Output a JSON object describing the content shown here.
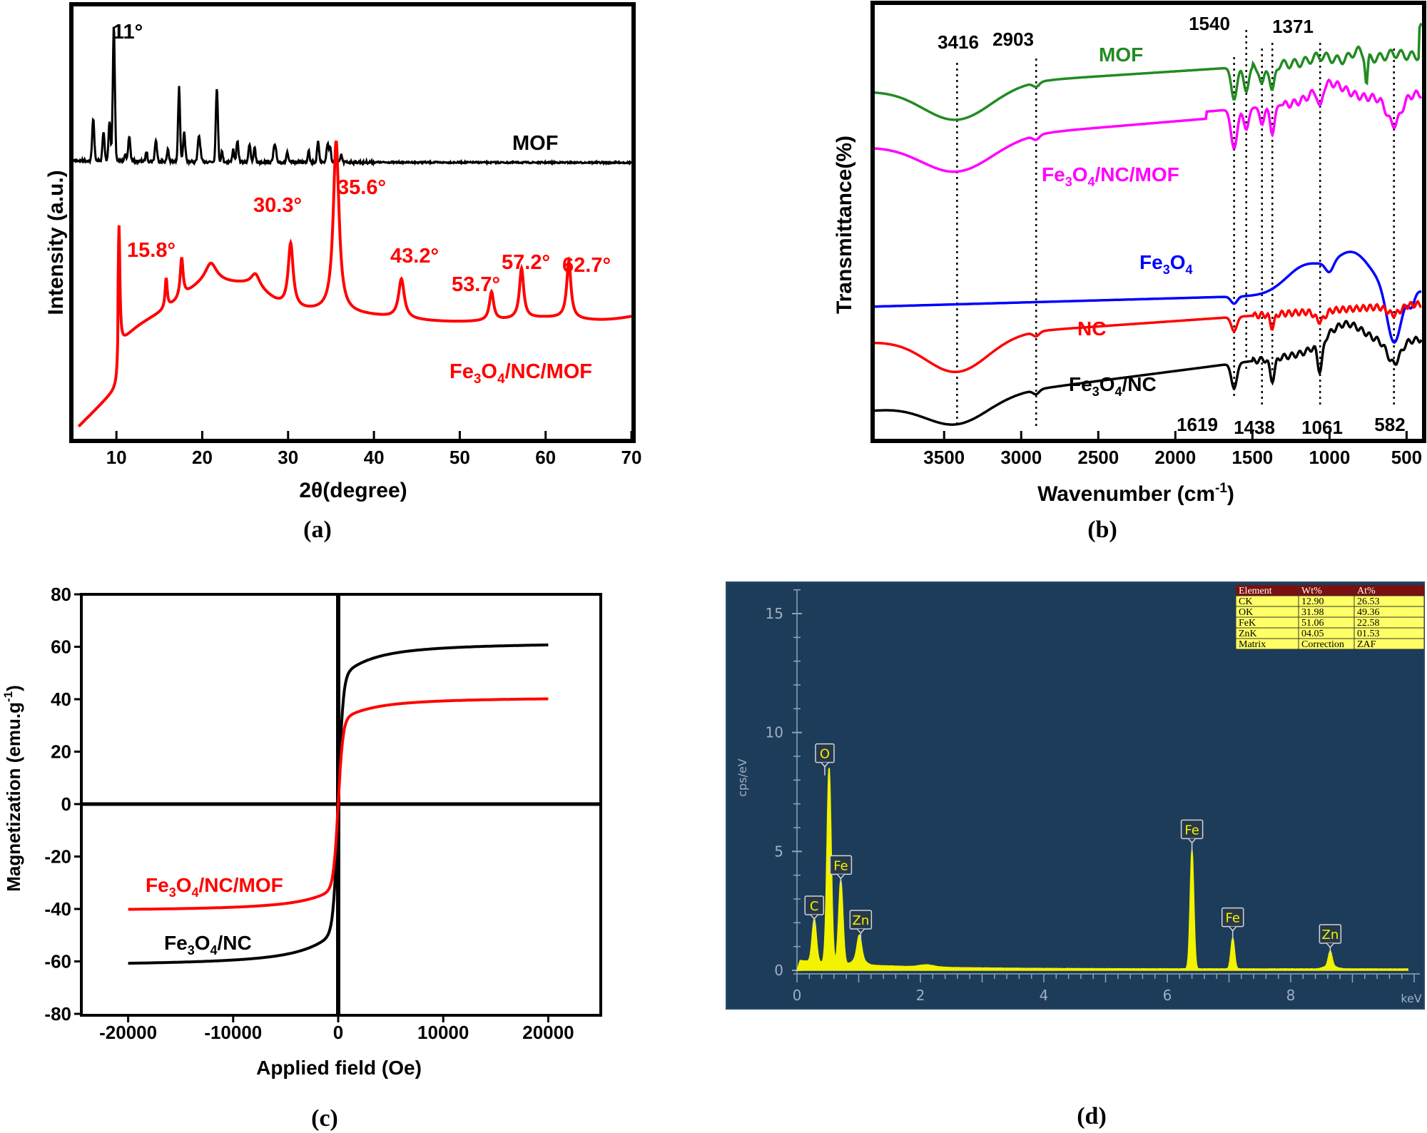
{
  "captions": {
    "a": "(a)",
    "b": "(b)",
    "c": "(c)",
    "d": "(d)"
  },
  "chart_data": [
    {
      "panel": "a",
      "type": "line",
      "title": "",
      "xlabel": "2θ(degree)",
      "ylabel": "Intensity (a.u.)",
      "xlim": [
        5,
        70
      ],
      "xticks": [
        "10",
        "20",
        "30",
        "40",
        "50",
        "60",
        "70"
      ],
      "series": [
        {
          "name": "MOF",
          "color": "#000000",
          "peaks_deg": [
            7.3,
            8.5,
            9.2,
            9.7,
            11.5,
            14.6,
            17.3,
            17.9,
            19.6,
            21.7,
            24.1,
            25.5,
            28.4,
            33.5,
            34.6
          ],
          "annotations": [
            {
              "x": 9.7,
              "text": "11°"
            }
          ]
        },
        {
          "name": "Fe3O4/NC/MOF",
          "color": "#ff0000",
          "peaks_deg": [
            10.3,
            15.8,
            17.6,
            30.3,
            35.6,
            43.2,
            53.7,
            57.2,
            62.7
          ],
          "annotations": [
            {
              "x": 15.8,
              "text": "15.8°"
            },
            {
              "x": 30.3,
              "text": "30.3°"
            },
            {
              "x": 35.6,
              "text": "35.6°"
            },
            {
              "x": 43.2,
              "text": "43.2°"
            },
            {
              "x": 53.7,
              "text": "53.7°"
            },
            {
              "x": 57.2,
              "text": "57.2°"
            },
            {
              "x": 62.7,
              "text": "62.7°"
            }
          ]
        }
      ]
    },
    {
      "panel": "b",
      "type": "line",
      "title": "",
      "xlabel": "Wavenumber (cm-1)",
      "ylabel": "Transmittance(%)",
      "xlim": [
        3950,
        400
      ],
      "xticks": [
        "3500",
        "3000",
        "2500",
        "2000",
        "1500",
        "1000",
        "500"
      ],
      "reference_lines": [
        "3416",
        "2903",
        "1619",
        "1540",
        "1438",
        "1371",
        "1061",
        "582"
      ],
      "series": [
        {
          "name": "MOF",
          "color": "#228b22"
        },
        {
          "name": "Fe3O4/NC/MOF",
          "color": "#ff00ff"
        },
        {
          "name": "Fe3O4",
          "color": "#0000ff"
        },
        {
          "name": "NC",
          "color": "#ff0000"
        },
        {
          "name": "Fe3O4/NC",
          "color": "#000000"
        }
      ]
    },
    {
      "panel": "c",
      "type": "line",
      "title": "",
      "xlabel": "Applied field (Oe)",
      "ylabel": "Magnetization (emu.g-1)",
      "xlim": [
        -25000,
        25000
      ],
      "ylim": [
        -80,
        80
      ],
      "xticks": [
        "-20000",
        "-10000",
        "0",
        "10000",
        "20000"
      ],
      "yticks": [
        "80",
        "60",
        "40",
        "20",
        "0",
        "-20",
        "-40",
        "-60",
        "-80"
      ],
      "series": [
        {
          "name": "Fe3O4/NC",
          "color": "#000000",
          "saturation": 62,
          "x": [
            -20000,
            -10000,
            -5000,
            -2000,
            -1000,
            0,
            1000,
            2000,
            5000,
            10000,
            20000
          ],
          "y": [
            -62,
            -59.5,
            -56,
            -48,
            -41,
            0,
            41,
            48,
            56,
            59.5,
            62
          ]
        },
        {
          "name": "Fe3O4/NC/MOF",
          "color": "#ff0000",
          "saturation": 41,
          "x": [
            -20000,
            -10000,
            -5000,
            -2000,
            -1000,
            0,
            1000,
            2000,
            5000,
            10000,
            20000
          ],
          "y": [
            -41,
            -39.5,
            -37,
            -33,
            -28,
            0,
            28,
            33,
            37,
            39.5,
            41
          ]
        }
      ]
    },
    {
      "panel": "d",
      "type": "line",
      "title": "",
      "xlabel": "keV",
      "ylabel": "cps/eV",
      "xlim": [
        0,
        10
      ],
      "ylim": [
        0,
        17
      ],
      "xticks": [
        "0",
        "2",
        "4",
        "6",
        "8"
      ],
      "yticks": [
        "0",
        "5",
        "10",
        "15"
      ],
      "peaks": [
        {
          "label": "C",
          "x": 0.28,
          "y": 1.8
        },
        {
          "label": "O",
          "x": 0.52,
          "y": 8.2
        },
        {
          "label": "Fe",
          "x": 0.71,
          "y": 3.5
        },
        {
          "label": "Zn",
          "x": 1.01,
          "y": 0.9
        },
        {
          "label": "Fe",
          "x": 6.4,
          "y": 5.0
        },
        {
          "label": "Fe",
          "x": 7.06,
          "y": 1.3
        },
        {
          "label": "Zn",
          "x": 8.64,
          "y": 0.6
        }
      ],
      "table": {
        "headers": [
          "Element",
          "Wt%",
          "At%"
        ],
        "rows": [
          [
            "CK",
            "12.90",
            "26.53"
          ],
          [
            "OK",
            "31.98",
            "49.36"
          ],
          [
            "FeK",
            "51.06",
            "22.58"
          ],
          [
            "ZnK",
            "04.05",
            "01.53"
          ],
          [
            "Matrix",
            "Correction",
            "ZAF"
          ]
        ]
      }
    }
  ]
}
